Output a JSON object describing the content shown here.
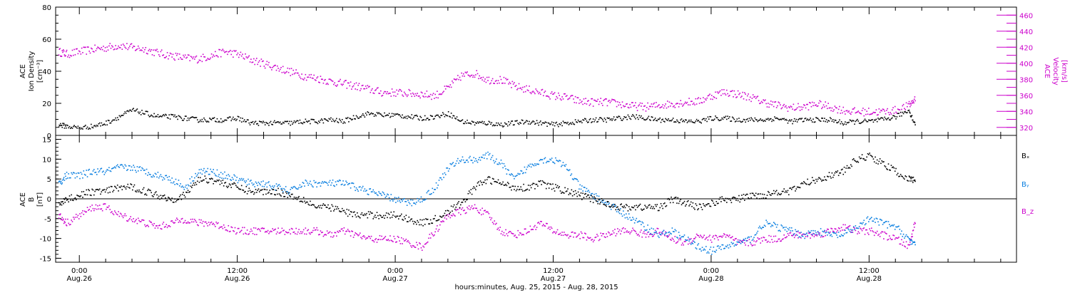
{
  "colors": {
    "density": "#000000",
    "velocity": "#cc00cc",
    "bx": "#000000",
    "by": "#0a7fe0",
    "bz": "#cc00cc",
    "frame": "#000000"
  },
  "footer": "hours:minutes, Aug. 25, 2015 - Aug. 28, 2015",
  "time_ticks": [
    {
      "t": 21.0,
      "hm": "0:00",
      "date": "Aug.26"
    },
    {
      "t": 33.0,
      "hm": "12:00",
      "date": "Aug.26"
    },
    {
      "t": 45.0,
      "hm": "0:00",
      "date": "Aug.27"
    },
    {
      "t": 57.0,
      "hm": "12:00",
      "date": "Aug.27"
    },
    {
      "t": 69.0,
      "hm": "0:00",
      "date": "Aug.28"
    },
    {
      "t": 81.0,
      "hm": "12:00",
      "date": "Aug.28"
    }
  ],
  "chart_data": [
    {
      "type": "scatter",
      "panel": "top",
      "ylabel_left": [
        "ACE",
        "Ion Density",
        "[cm⁻³]"
      ],
      "ylabel_right": [
        "ACE",
        "Velocity",
        "[km/s]"
      ],
      "x_units": "hours since Aug. 25, 2015 00:00",
      "xlim": [
        19.2,
        92.2
      ],
      "ylim_left": [
        0,
        80
      ],
      "yticks_left": [
        0,
        20,
        40,
        60,
        80
      ],
      "ylim_right": [
        310,
        470
      ],
      "yticks_right": [
        320,
        340,
        360,
        380,
        400,
        420,
        440,
        460
      ],
      "series": [
        {
          "name": "Ion Density",
          "axis": "left",
          "x": [
            19.4,
            20.0,
            21.0,
            22.0,
            23.0,
            24.0,
            25.0,
            26.0,
            27.0,
            28.0,
            29.0,
            30.0,
            31.0,
            32.0,
            33.0,
            34.0,
            35.0,
            36.0,
            37.0,
            38.0,
            39.0,
            40.0,
            41.0,
            42.0,
            43.0,
            44.0,
            45.0,
            46.0,
            47.0,
            48.0,
            49.0,
            50.0,
            51.0,
            52.0,
            53.0,
            54.0,
            55.0,
            56.0,
            57.0,
            58.0,
            59.0,
            60.0,
            61.0,
            62.0,
            63.0,
            64.0,
            65.0,
            66.0,
            67.0,
            68.0,
            69.0,
            70.0,
            71.0,
            72.0,
            73.0,
            74.0,
            75.0,
            76.0,
            77.0,
            78.0,
            79.0,
            80.0,
            81.0,
            82.0,
            83.0,
            84.0,
            84.5
          ],
          "y": [
            7,
            6,
            5,
            6,
            8,
            12,
            16,
            14,
            12,
            12,
            11,
            10,
            10,
            10,
            11,
            8,
            8,
            8,
            8,
            9,
            9,
            10,
            9,
            12,
            14,
            13,
            13,
            12,
            11,
            12,
            14,
            9,
            8,
            8,
            7,
            8,
            9,
            8,
            7,
            8,
            9,
            10,
            10,
            11,
            12,
            11,
            10,
            10,
            9,
            9,
            11,
            11,
            10,
            10,
            10,
            11,
            9,
            10,
            10,
            10,
            8,
            9,
            9,
            10,
            12,
            16,
            6
          ]
        },
        {
          "name": "Velocity",
          "axis": "right",
          "x": [
            19.4,
            20.0,
            21.0,
            22.0,
            23.0,
            24.0,
            25.0,
            26.0,
            27.0,
            28.0,
            29.0,
            30.0,
            31.0,
            32.0,
            33.0,
            34.0,
            35.0,
            36.0,
            37.0,
            38.0,
            39.0,
            40.0,
            41.0,
            42.0,
            43.0,
            44.0,
            45.0,
            46.0,
            47.0,
            48.0,
            49.0,
            50.0,
            51.0,
            52.0,
            53.0,
            54.0,
            55.0,
            56.0,
            57.0,
            58.0,
            59.0,
            60.0,
            61.0,
            62.0,
            63.0,
            64.0,
            65.0,
            66.0,
            67.0,
            68.0,
            69.0,
            70.0,
            71.0,
            72.0,
            73.0,
            74.0,
            75.0,
            76.0,
            77.0,
            78.0,
            79.0,
            80.0,
            81.0,
            82.0,
            83.0,
            84.0,
            84.5
          ],
          "y": [
            415,
            412,
            415,
            418,
            420,
            423,
            420,
            418,
            413,
            410,
            407,
            406,
            410,
            415,
            412,
            405,
            400,
            395,
            390,
            385,
            382,
            378,
            375,
            372,
            368,
            364,
            364,
            363,
            362,
            360,
            370,
            385,
            388,
            380,
            380,
            372,
            368,
            364,
            360,
            358,
            353,
            352,
            352,
            350,
            347,
            346,
            348,
            350,
            352,
            353,
            360,
            365,
            362,
            358,
            352,
            348,
            345,
            346,
            350,
            346,
            342,
            340,
            340,
            340,
            342,
            348,
            357
          ]
        }
      ]
    },
    {
      "type": "scatter",
      "panel": "bottom",
      "ylabel_left": [
        "ACE",
        "B",
        "[nT]"
      ],
      "x_units": "hours since Aug. 25, 2015 00:00",
      "xlim": [
        19.2,
        92.2
      ],
      "ylim": [
        -16,
        16
      ],
      "yticks": [
        -15,
        -10,
        -5,
        0,
        5,
        10,
        15
      ],
      "zero_line": true,
      "series": [
        {
          "name": "Bₓ",
          "x": [
            19.4,
            20.0,
            21.0,
            22.0,
            23.0,
            24.0,
            25.0,
            26.0,
            27.0,
            28.0,
            29.0,
            30.0,
            31.0,
            32.0,
            33.0,
            34.0,
            35.0,
            36.0,
            37.0,
            38.0,
            39.0,
            40.0,
            41.0,
            42.0,
            43.0,
            44.0,
            45.0,
            46.0,
            47.0,
            48.0,
            49.0,
            50.0,
            51.0,
            52.0,
            53.0,
            54.0,
            55.0,
            56.0,
            57.0,
            58.0,
            59.0,
            60.0,
            61.0,
            62.0,
            63.0,
            64.0,
            65.0,
            66.0,
            67.0,
            68.0,
            69.0,
            70.0,
            71.0,
            72.0,
            73.0,
            74.0,
            75.0,
            76.0,
            77.0,
            78.0,
            79.0,
            80.0,
            81.0,
            82.0,
            83.0,
            84.0,
            84.5
          ],
          "y": [
            -1,
            0,
            1,
            2,
            2,
            3,
            3,
            2,
            1,
            0,
            1,
            5,
            5,
            4,
            3,
            2,
            2,
            2,
            1,
            0,
            -2,
            -2,
            -3,
            -4,
            -4,
            -4,
            -4,
            -5,
            -6,
            -5,
            -3,
            -1,
            3,
            5,
            4,
            3,
            3,
            4,
            3,
            2,
            1,
            0,
            -1,
            -2,
            -2,
            -2,
            -2,
            0,
            -1,
            -2,
            -1,
            0,
            0,
            1,
            1,
            2,
            2,
            4,
            5,
            6,
            7,
            10,
            11,
            9,
            7,
            5,
            5
          ]
        },
        {
          "name": "Bᵧ",
          "x": [
            19.4,
            20.0,
            21.0,
            22.0,
            23.0,
            24.0,
            25.0,
            26.0,
            27.0,
            28.0,
            29.0,
            30.0,
            31.0,
            32.0,
            33.0,
            34.0,
            35.0,
            36.0,
            37.0,
            38.0,
            39.0,
            40.0,
            41.0,
            42.0,
            43.0,
            44.0,
            45.0,
            46.0,
            47.0,
            48.0,
            49.0,
            50.0,
            51.0,
            52.0,
            53.0,
            54.0,
            55.0,
            56.0,
            57.0,
            58.0,
            59.0,
            60.0,
            61.0,
            62.0,
            63.0,
            64.0,
            65.0,
            66.0,
            67.0,
            68.0,
            69.0,
            70.0,
            71.0,
            72.0,
            73.0,
            74.0,
            75.0,
            76.0,
            77.0,
            78.0,
            79.0,
            80.0,
            81.0,
            82.0,
            83.0,
            84.0,
            84.5
          ],
          "y": [
            4,
            6,
            6,
            7,
            7,
            8,
            8,
            7,
            6,
            5,
            3,
            7,
            7,
            6,
            5,
            4,
            4,
            3,
            2,
            4,
            4,
            4,
            4,
            3,
            2,
            1,
            0,
            -1,
            0,
            3,
            8,
            10,
            10,
            11,
            9,
            5,
            8,
            10,
            10,
            8,
            3,
            1,
            -1,
            -3,
            -5,
            -7,
            -9,
            -8,
            -10,
            -12,
            -13,
            -12,
            -11,
            -10,
            -6,
            -7,
            -8,
            -9,
            -8,
            -9,
            -9,
            -7,
            -5,
            -6,
            -7,
            -10,
            -12
          ]
        },
        {
          "name": "B_z",
          "x": [
            19.4,
            20.0,
            21.0,
            22.0,
            23.0,
            24.0,
            25.0,
            26.0,
            27.0,
            28.0,
            29.0,
            30.0,
            31.0,
            32.0,
            33.0,
            34.0,
            35.0,
            36.0,
            37.0,
            38.0,
            39.0,
            40.0,
            41.0,
            42.0,
            43.0,
            44.0,
            45.0,
            46.0,
            47.0,
            48.0,
            49.0,
            50.0,
            51.0,
            52.0,
            53.0,
            54.0,
            55.0,
            56.0,
            57.0,
            58.0,
            59.0,
            60.0,
            61.0,
            62.0,
            63.0,
            64.0,
            65.0,
            66.0,
            67.0,
            68.0,
            69.0,
            70.0,
            71.0,
            72.0,
            73.0,
            74.0,
            75.0,
            76.0,
            77.0,
            78.0,
            79.0,
            80.0,
            81.0,
            82.0,
            83.0,
            84.0,
            84.5
          ],
          "y": [
            -4,
            -6,
            -4,
            -2,
            -2,
            -4,
            -5,
            -6,
            -7,
            -6,
            -5,
            -6,
            -6,
            -7,
            -8,
            -8,
            -8,
            -8,
            -8,
            -8,
            -8,
            -9,
            -8,
            -9,
            -10,
            -10,
            -10,
            -11,
            -12,
            -8,
            -4,
            -3,
            -2,
            -4,
            -8,
            -9,
            -8,
            -6,
            -8,
            -9,
            -9,
            -10,
            -9,
            -8,
            -8,
            -9,
            -8,
            -10,
            -11,
            -9,
            -10,
            -9,
            -11,
            -11,
            -10,
            -10,
            -9,
            -9,
            -9,
            -8,
            -7,
            -8,
            -8,
            -9,
            -10,
            -12,
            -5
          ]
        }
      ]
    }
  ]
}
